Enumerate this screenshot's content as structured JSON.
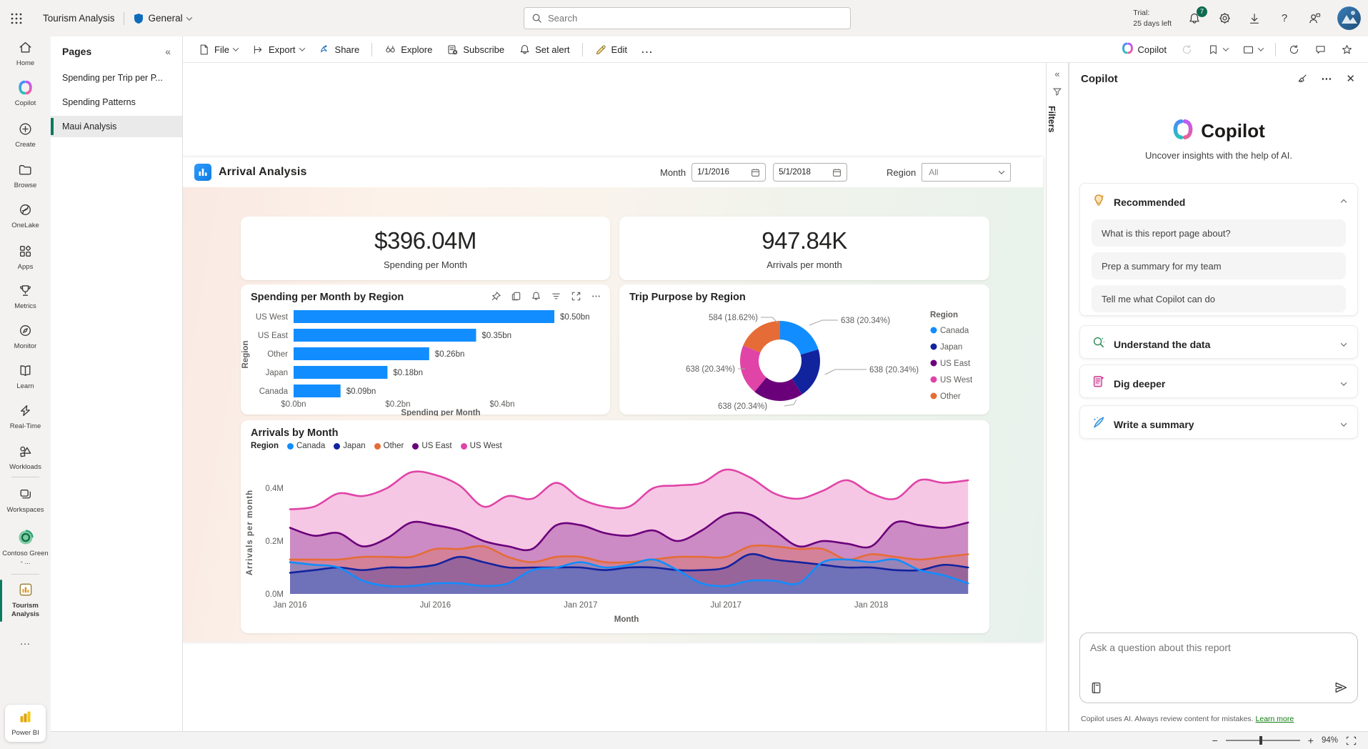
{
  "top_bar": {
    "title": "Tourism Analysis",
    "workspace_label": "General",
    "search_placeholder": "Search",
    "trial_label": "Trial:",
    "trial_days": "25 days left",
    "notifications": "7",
    "help": "?"
  },
  "rail": {
    "items": [
      "Home",
      "Copilot",
      "Create",
      "Browse",
      "OneLake",
      "Apps",
      "Metrics",
      "Monitor",
      "Learn",
      "Real-Time",
      "Workloads",
      "Workspaces",
      "Contoso Green - ...",
      "Tourism Analysis"
    ],
    "more": "...",
    "power_bi": "Power BI"
  },
  "pages": {
    "title": "Pages",
    "items": [
      {
        "label": "Spending per Trip per P..."
      },
      {
        "label": "Spending Patterns"
      },
      {
        "label": "Maui Analysis"
      }
    ]
  },
  "toolbar": {
    "file": "File",
    "export": "Export",
    "share": "Share",
    "explore": "Explore",
    "subscribe": "Subscribe",
    "set_alert": "Set alert",
    "edit": "Edit",
    "more": "...",
    "copilot": "Copilot"
  },
  "filters_pane": {
    "label": "Filters"
  },
  "report": {
    "title": "Arrival Analysis",
    "month_label": "Month",
    "date_start": "1/1/2016",
    "date_end": "5/1/2018",
    "region_label": "Region",
    "region_value": "All",
    "kpis": [
      {
        "value": "$396.04M",
        "label": "Spending per Month"
      },
      {
        "value": "947.84K",
        "label": "Arrivals per month"
      }
    ]
  },
  "chart_data": [
    {
      "type": "bar",
      "title": "Spending per Month by Region",
      "orientation": "horizontal",
      "categories": [
        "US West",
        "US East",
        "Other",
        "Japan",
        "Canada"
      ],
      "values": [
        0.5,
        0.35,
        0.26,
        0.18,
        0.09
      ],
      "data_labels": [
        "$0.50bn",
        "$0.35bn",
        "$0.26bn",
        "$0.18bn",
        "$0.09bn"
      ],
      "x_ticks": [
        "$0.0bn",
        "$0.2bn",
        "$0.4bn"
      ],
      "xlim": [
        0,
        0.6
      ],
      "xlabel": "Spending per Month",
      "ylabel": "Region",
      "bar_color": "#118DFF"
    },
    {
      "type": "donut",
      "title": "Trip Purpose by Region",
      "legend_title": "Region",
      "slices": [
        {
          "name": "Canada",
          "value": 638,
          "pct": "20.34%",
          "color": "#118DFF"
        },
        {
          "name": "Japan",
          "value": 638,
          "pct": "20.34%",
          "color": "#12239E"
        },
        {
          "name": "US East",
          "value": 638,
          "pct": "20.34%",
          "color": "#6B007B"
        },
        {
          "name": "US West",
          "value": 638,
          "pct": "20.34%",
          "color": "#E044A7"
        },
        {
          "name": "Other",
          "value": 584,
          "pct": "18.62%",
          "color": "#E66C37"
        }
      ]
    },
    {
      "type": "area",
      "title": "Arrivals by Month",
      "legend_title": "Region",
      "xlabel": "Month",
      "ylabel": "Arrivals per month",
      "ylim": [
        0,
        0.5
      ],
      "y_ticks": [
        "0.0M",
        "0.2M",
        "0.4M"
      ],
      "x_ticks": [
        {
          "i": 0,
          "label": "Jan 2016"
        },
        {
          "i": 6,
          "label": "Jul 2016"
        },
        {
          "i": 12,
          "label": "Jan 2017"
        },
        {
          "i": 18,
          "label": "Jul 2017"
        },
        {
          "i": 24,
          "label": "Jan 2018"
        }
      ],
      "series": [
        {
          "name": "Canada",
          "color": "#118DFF",
          "values": [
            0.12,
            0.11,
            0.1,
            0.05,
            0.03,
            0.03,
            0.04,
            0.04,
            0.03,
            0.04,
            0.09,
            0.1,
            0.12,
            0.1,
            0.11,
            0.13,
            0.09,
            0.04,
            0.03,
            0.05,
            0.05,
            0.04,
            0.12,
            0.13,
            0.12,
            0.13,
            0.09,
            0.07,
            0.04
          ]
        },
        {
          "name": "Japan",
          "color": "#12239E",
          "values": [
            0.08,
            0.09,
            0.1,
            0.09,
            0.1,
            0.1,
            0.11,
            0.14,
            0.12,
            0.1,
            0.1,
            0.1,
            0.1,
            0.09,
            0.1,
            0.1,
            0.09,
            0.09,
            0.1,
            0.15,
            0.13,
            0.12,
            0.11,
            0.1,
            0.1,
            0.09,
            0.09,
            0.11,
            0.1
          ]
        },
        {
          "name": "Other",
          "color": "#E66C37",
          "values": [
            0.13,
            0.13,
            0.13,
            0.14,
            0.14,
            0.14,
            0.17,
            0.17,
            0.18,
            0.14,
            0.12,
            0.14,
            0.14,
            0.12,
            0.12,
            0.13,
            0.14,
            0.14,
            0.14,
            0.18,
            0.18,
            0.17,
            0.17,
            0.13,
            0.15,
            0.14,
            0.13,
            0.14,
            0.15
          ]
        },
        {
          "name": "US East",
          "color": "#6B007B",
          "values": [
            0.25,
            0.22,
            0.23,
            0.18,
            0.21,
            0.27,
            0.26,
            0.24,
            0.2,
            0.18,
            0.17,
            0.26,
            0.26,
            0.23,
            0.22,
            0.24,
            0.2,
            0.24,
            0.3,
            0.3,
            0.24,
            0.18,
            0.2,
            0.19,
            0.18,
            0.27,
            0.26,
            0.25,
            0.27
          ]
        },
        {
          "name": "US West",
          "color": "#E044A7",
          "values": [
            0.32,
            0.33,
            0.38,
            0.37,
            0.4,
            0.46,
            0.45,
            0.41,
            0.33,
            0.37,
            0.36,
            0.42,
            0.36,
            0.33,
            0.33,
            0.4,
            0.41,
            0.42,
            0.47,
            0.44,
            0.38,
            0.36,
            0.39,
            0.43,
            0.38,
            0.36,
            0.43,
            0.42,
            0.43
          ]
        }
      ]
    }
  ],
  "copilot": {
    "header": "Copilot",
    "title": "Copilot",
    "subtitle": "Uncover insights with the help of AI.",
    "sections": {
      "recommended": "Recommended",
      "understand": "Understand the data",
      "dig": "Dig deeper",
      "write": "Write a summary"
    },
    "suggestions": [
      "What is this report page about?",
      "Prep a summary for my team",
      "Tell me what Copilot can do"
    ],
    "input_placeholder": "Ask a question about this report",
    "footer": "Copilot uses AI. Always review content for mistakes.",
    "footer_link": "Learn more"
  },
  "status_bar": {
    "zoom": "94%"
  }
}
